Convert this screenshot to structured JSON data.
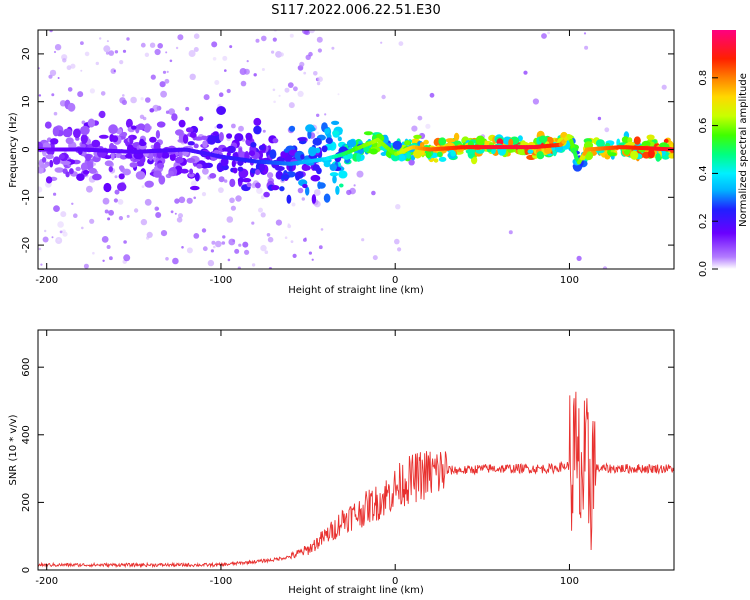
{
  "title": "S117.2022.006.22.51.E30",
  "chart_data": [
    {
      "type": "heatmap",
      "title": "S117.2022.006.22.51.E30",
      "xlabel": "Height of straight line (km)",
      "ylabel": "Frequency (Hz)",
      "xlim": [
        -205,
        160
      ],
      "ylim": [
        -25,
        25
      ],
      "x_ticks": [
        -200,
        -100,
        0,
        100
      ],
      "y_ticks": [
        -20,
        -10,
        0,
        10,
        20
      ],
      "colorbar": {
        "label": "Normalized spectral amplitude",
        "range": [
          0,
          1
        ],
        "ticks": [
          "0.0",
          "0.2",
          "0.4",
          "0.6",
          "0.8"
        ],
        "colormap": [
          "#ffffff",
          "#b37cff",
          "#6a00ff",
          "#2020ff",
          "#00b4ff",
          "#00f0ff",
          "#00ff80",
          "#40ff00",
          "#c8ff00",
          "#ffd800",
          "#ff8000",
          "#ff2000",
          "#ff0080"
        ]
      },
      "ridge": {
        "x": [
          -205,
          -180,
          -150,
          -120,
          -100,
          -80,
          -60,
          -40,
          -30,
          -20,
          -10,
          0,
          10,
          20,
          40,
          60,
          80,
          95,
          100,
          105,
          110,
          130,
          160
        ],
        "frequency": [
          0,
          0,
          -0.5,
          0,
          -1.5,
          -2.5,
          -3,
          -2,
          -1,
          0.5,
          2,
          -1,
          0.5,
          0,
          0.5,
          0.5,
          0.5,
          1,
          3,
          -3,
          0,
          0.5,
          0
        ],
        "amplitude": [
          0.15,
          0.18,
          0.18,
          0.2,
          0.22,
          0.25,
          0.3,
          0.38,
          0.5,
          0.6,
          0.65,
          0.6,
          0.75,
          0.85,
          0.92,
          0.95,
          0.95,
          0.9,
          0.7,
          0.5,
          0.8,
          0.9,
          0.95
        ]
      }
    },
    {
      "type": "line",
      "xlabel": "Height of straight line (km)",
      "ylabel": "SNR (10 * v/v)",
      "xlim": [
        -205,
        160
      ],
      "ylim": [
        0,
        710
      ],
      "x_ticks": [
        -200,
        -100,
        0,
        100
      ],
      "y_ticks": [
        0,
        200,
        400,
        600
      ],
      "color": "#e8302e",
      "series": [
        {
          "x": [
            -205,
            -180,
            -160,
            -140,
            -120,
            -100,
            -90,
            -80,
            -70,
            -60,
            -50,
            -45,
            -40,
            -35,
            -30,
            -25,
            -20,
            -15,
            -10,
            -5,
            0,
            5,
            10,
            15,
            20,
            25,
            30,
            40,
            50,
            60,
            70,
            80,
            90,
            95,
            100,
            103,
            105,
            107,
            109,
            111,
            113,
            115,
            120,
            130,
            140,
            150,
            160
          ],
          "values": [
            15,
            15,
            15,
            15,
            15,
            15,
            20,
            25,
            30,
            40,
            60,
            80,
            100,
            120,
            150,
            160,
            170,
            190,
            200,
            220,
            240,
            260,
            270,
            280,
            285,
            290,
            295,
            295,
            300,
            300,
            300,
            300,
            300,
            305,
            310,
            320,
            260,
            300,
            240,
            280,
            300,
            300,
            300,
            300,
            300,
            300,
            300
          ]
        }
      ]
    }
  ]
}
